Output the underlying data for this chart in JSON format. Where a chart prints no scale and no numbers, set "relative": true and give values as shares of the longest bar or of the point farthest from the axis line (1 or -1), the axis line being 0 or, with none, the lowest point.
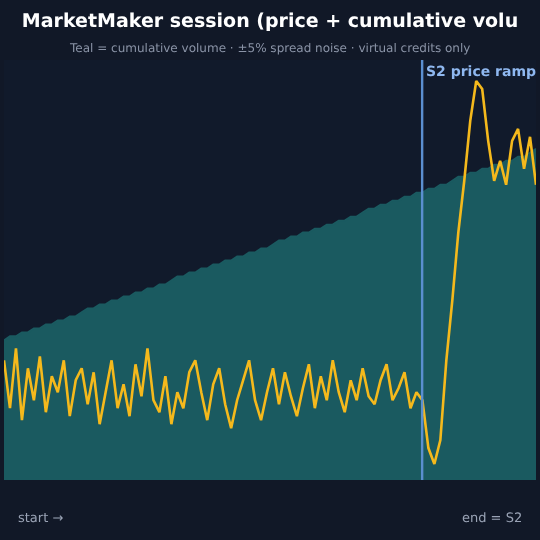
{
  "chart_data": {
    "type": "line",
    "title": "MarketMaker session (price + cumulative volu",
    "subtitle": "Teal = cumulative volume · ±5% spread noise · virtual credits only",
    "relative": true,
    "categories": [
      null,
      null,
      null,
      null,
      null,
      null,
      null,
      null,
      null,
      null,
      null,
      null,
      null,
      null,
      null,
      null,
      null,
      null,
      null,
      null,
      null,
      null,
      null,
      null,
      null,
      null,
      null,
      null,
      null,
      null,
      null,
      null,
      null,
      null,
      null,
      null,
      null,
      null,
      null,
      null,
      null,
      null,
      null,
      null,
      null,
      null,
      null,
      null,
      null,
      null,
      null,
      null,
      null,
      null,
      null,
      null,
      null,
      null,
      null,
      null,
      null,
      null,
      null,
      null,
      null,
      null,
      null,
      null,
      null,
      null,
      null,
      null,
      null,
      null,
      null,
      null,
      null,
      null,
      null,
      null,
      null,
      null,
      null,
      null,
      null,
      null,
      null,
      null,
      null,
      null
    ],
    "series": [
      {
        "type": "area",
        "color": "#1a5a60",
        "values": [
          0.35,
          0.36,
          0.36,
          0.37,
          0.37,
          0.38,
          0.38,
          0.39,
          0.39,
          0.4,
          0.4,
          0.41,
          0.41,
          0.42,
          0.43,
          0.43,
          0.44,
          0.44,
          0.45,
          0.45,
          0.46,
          0.46,
          0.47,
          0.47,
          0.48,
          0.48,
          0.49,
          0.49,
          0.5,
          0.51,
          0.51,
          0.52,
          0.52,
          0.53,
          0.53,
          0.54,
          0.54,
          0.55,
          0.55,
          0.56,
          0.56,
          0.57,
          0.57,
          0.58,
          0.58,
          0.59,
          0.6,
          0.6,
          0.61,
          0.61,
          0.62,
          0.62,
          0.63,
          0.63,
          0.64,
          0.64,
          0.65,
          0.65,
          0.66,
          0.66,
          0.67,
          0.68,
          0.68,
          0.69,
          0.69,
          0.7,
          0.7,
          0.71,
          0.71,
          0.72,
          0.72,
          0.73,
          0.73,
          0.74,
          0.74,
          0.75,
          0.76,
          0.76,
          0.77,
          0.77,
          0.78,
          0.78,
          0.79,
          0.79,
          0.8,
          0.8,
          0.81,
          0.81,
          0.82,
          0.83
        ]
      },
      {
        "color": "#f5b91c",
        "values": [
          0.3,
          0.18,
          0.33,
          0.15,
          0.28,
          0.2,
          0.31,
          0.17,
          0.26,
          0.22,
          0.3,
          0.16,
          0.25,
          0.28,
          0.19,
          0.27,
          0.14,
          0.22,
          0.3,
          0.18,
          0.24,
          0.16,
          0.29,
          0.21,
          0.33,
          0.2,
          0.17,
          0.26,
          0.14,
          0.22,
          0.18,
          0.27,
          0.3,
          0.22,
          0.15,
          0.24,
          0.28,
          0.19,
          0.13,
          0.2,
          0.25,
          0.3,
          0.2,
          0.15,
          0.22,
          0.28,
          0.19,
          0.27,
          0.21,
          0.16,
          0.23,
          0.29,
          0.18,
          0.26,
          0.2,
          0.3,
          0.22,
          0.17,
          0.25,
          0.2,
          0.28,
          0.21,
          0.19,
          0.25,
          0.29,
          0.2,
          0.23,
          0.27,
          0.18,
          0.22,
          0.2,
          0.08,
          0.04,
          0.1,
          0.3,
          0.45,
          0.62,
          0.75,
          0.9,
          1.0,
          0.98,
          0.85,
          0.75,
          0.8,
          0.74,
          0.85,
          0.88,
          0.78,
          0.86,
          0.74
        ]
      }
    ],
    "annotations": [
      "S2 price ramp",
      "start →",
      "end = S2"
    ]
  }
}
